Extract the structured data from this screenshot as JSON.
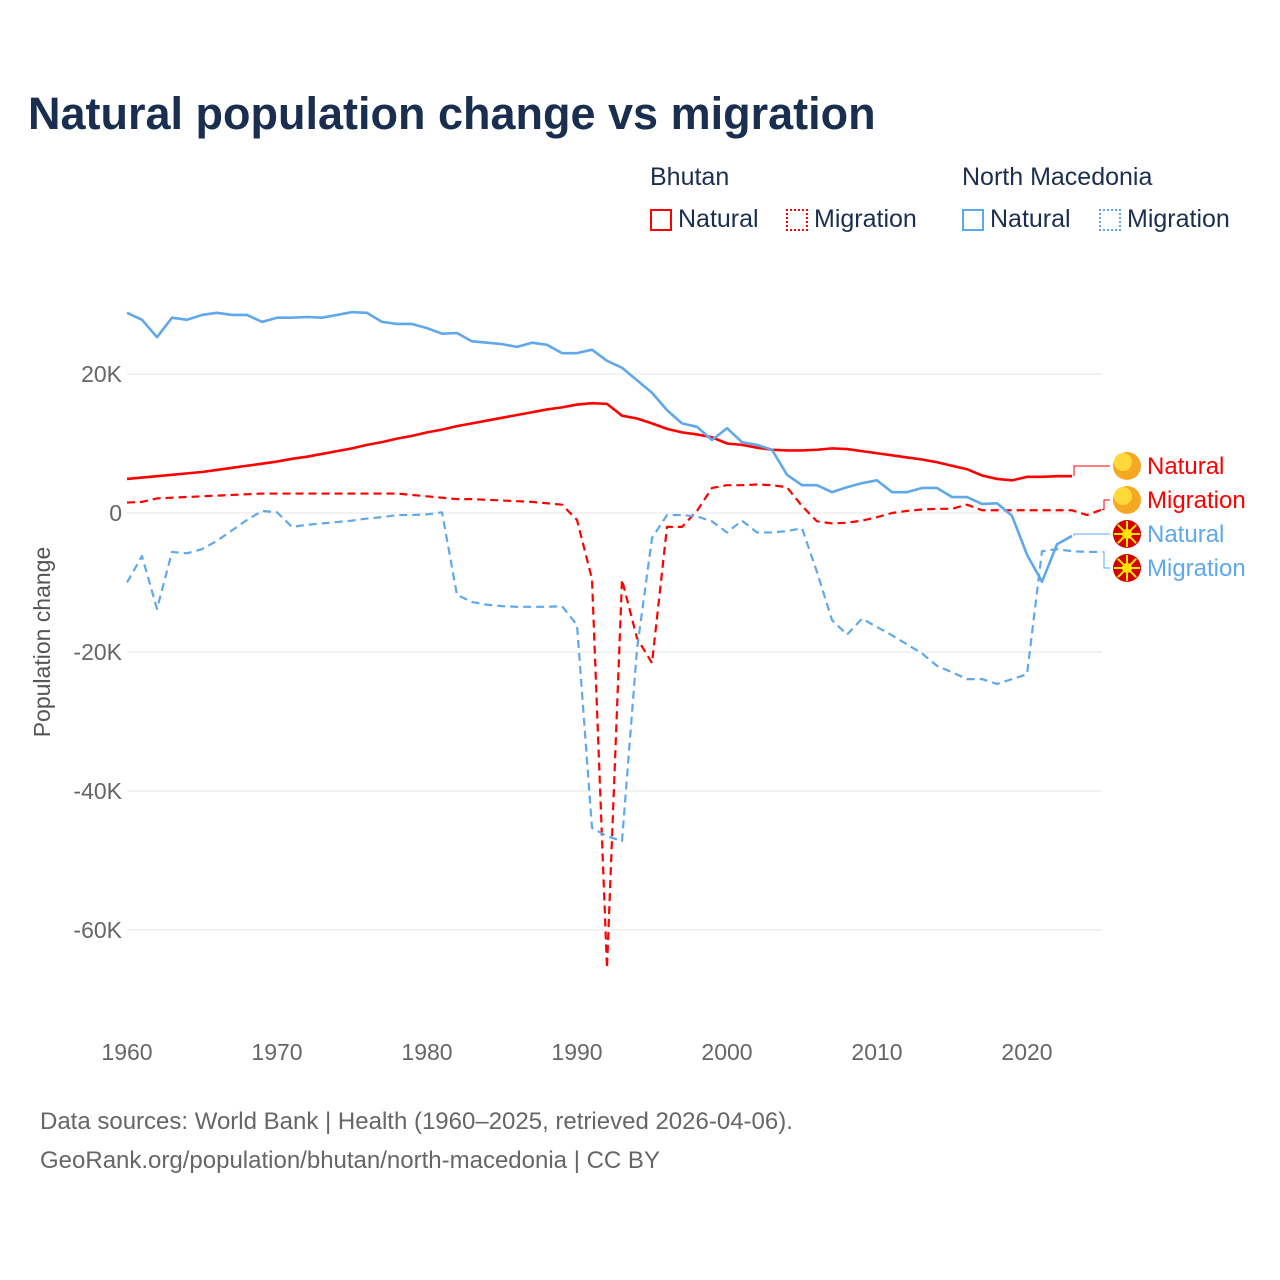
{
  "title": "Natural population change vs migration",
  "legend": {
    "groups": [
      {
        "name": "Bhutan",
        "items": [
          "Natural",
          "Migration"
        ]
      },
      {
        "name": "North Macedonia",
        "items": [
          "Natural",
          "Migration"
        ]
      }
    ]
  },
  "source": [
    "Data sources: World Bank | Health (1960–2025, retrieved 2026-04-06).",
    "GeoRank.org/population/bhutan/north-macedonia | CC BY"
  ],
  "colors": {
    "bhutan": "#ff0000",
    "north_macedonia": "#5fa8ec"
  },
  "chart_data": {
    "type": "line",
    "title": "Natural population change vs migration",
    "xlabel": "",
    "ylabel": "Population change",
    "xlim": [
      1960,
      2025
    ],
    "ylim": [
      -68,
      30
    ],
    "xticks": [
      1960,
      1970,
      1980,
      1990,
      2000,
      2010,
      2020
    ],
    "xtick_labels": [
      "1960",
      "1970",
      "1980",
      "1990",
      "2000",
      "2010",
      "2020"
    ],
    "yticks": [
      20,
      0,
      -20,
      -40,
      -60
    ],
    "ytick_labels": [
      "20K",
      "0",
      "-20K",
      "-40K",
      "-60K"
    ],
    "grid": true,
    "end_labels": [
      "Natural",
      "Migration",
      "Natural",
      "Migration"
    ],
    "series": [
      {
        "name": "Bhutan Natural",
        "country": "bhutan",
        "dash": false,
        "start": 1960,
        "values": [
          4.9,
          5.1,
          5.3,
          5.5,
          5.7,
          5.9,
          6.2,
          6.5,
          6.8,
          7.1,
          7.4,
          7.8,
          8.1,
          8.5,
          8.9,
          9.3,
          9.8,
          10.2,
          10.7,
          11.1,
          11.6,
          12.0,
          12.5,
          12.9,
          13.3,
          13.7,
          14.1,
          14.5,
          14.9,
          15.2,
          15.6,
          15.8,
          15.7,
          14.0,
          13.6,
          12.9,
          12.1,
          11.6,
          11.3,
          10.9,
          10.0,
          9.8,
          9.4,
          9.1,
          9.0,
          9.0,
          9.1,
          9.3,
          9.2,
          8.9,
          8.6,
          8.3,
          8.0,
          7.7,
          7.3,
          6.8,
          6.3,
          5.4,
          4.9,
          4.7,
          5.2,
          5.2,
          5.3,
          5.3
        ]
      },
      {
        "name": "Bhutan Migration",
        "country": "bhutan",
        "dash": true,
        "start": 1960,
        "values": [
          1.5,
          1.6,
          2.1,
          2.2,
          2.3,
          2.4,
          2.5,
          2.6,
          2.7,
          2.8,
          2.8,
          2.8,
          2.8,
          2.8,
          2.8,
          2.8,
          2.8,
          2.8,
          2.8,
          2.6,
          2.4,
          2.2,
          2.0,
          2.0,
          1.9,
          1.8,
          1.7,
          1.6,
          1.4,
          1.2,
          -1.0,
          -9.5,
          -65.5,
          -9.6,
          -18.0,
          -21.6,
          -2.0,
          -2.0,
          0.3,
          3.6,
          4.0,
          4.0,
          4.1,
          4.0,
          3.7,
          1.0,
          -1.2,
          -1.5,
          -1.4,
          -1.1,
          -0.6,
          0.0,
          0.3,
          0.5,
          0.6,
          0.6,
          1.2,
          0.4,
          0.4,
          0.4,
          0.4,
          0.4,
          0.4,
          0.4,
          -0.3,
          0.5
        ]
      },
      {
        "name": "North Macedonia Natural",
        "country": "north_macedonia",
        "dash": false,
        "start": 1960,
        "values": [
          28.8,
          27.8,
          25.3,
          28.1,
          27.8,
          28.5,
          28.8,
          28.5,
          28.5,
          27.5,
          28.1,
          28.1,
          28.2,
          28.1,
          28.5,
          28.9,
          28.8,
          27.5,
          27.2,
          27.2,
          26.6,
          25.8,
          25.9,
          24.7,
          24.5,
          24.3,
          23.9,
          24.5,
          24.2,
          23.0,
          23.0,
          23.5,
          21.9,
          20.9,
          19.1,
          17.3,
          14.8,
          12.9,
          12.4,
          10.5,
          12.2,
          10.2,
          9.8,
          9.1,
          5.5,
          4.0,
          4.0,
          3.0,
          3.7,
          4.3,
          4.7,
          3.0,
          3.0,
          3.6,
          3.6,
          2.3,
          2.3,
          1.3,
          1.4,
          -0.4,
          -6.0,
          -9.9,
          -4.5,
          -3.3
        ]
      },
      {
        "name": "North Macedonia Migration",
        "country": "north_macedonia",
        "dash": true,
        "start": 1960,
        "values": [
          -10.0,
          -6.2,
          -13.8,
          -5.6,
          -5.8,
          -5.2,
          -4.0,
          -2.5,
          -1.0,
          0.3,
          0.1,
          -2.0,
          -1.7,
          -1.5,
          -1.3,
          -1.1,
          -0.8,
          -0.6,
          -0.3,
          -0.3,
          -0.2,
          0.1,
          -11.8,
          -12.8,
          -13.2,
          -13.4,
          -13.5,
          -13.5,
          -13.5,
          -13.4,
          -16.1,
          -45.3,
          -46.5,
          -47.2,
          -19.6,
          -3.6,
          -0.3,
          -0.3,
          -0.5,
          -1.2,
          -2.8,
          -1.1,
          -2.8,
          -2.8,
          -2.6,
          -2.2,
          -8.5,
          -15.4,
          -17.5,
          -15.2,
          -16.4,
          -17.6,
          -18.9,
          -20.2,
          -22.0,
          -22.9,
          -23.9,
          -23.9,
          -24.6,
          -23.9,
          -23.2,
          -5.5,
          -5.2,
          -5.5,
          -5.6,
          -5.6
        ]
      }
    ]
  }
}
